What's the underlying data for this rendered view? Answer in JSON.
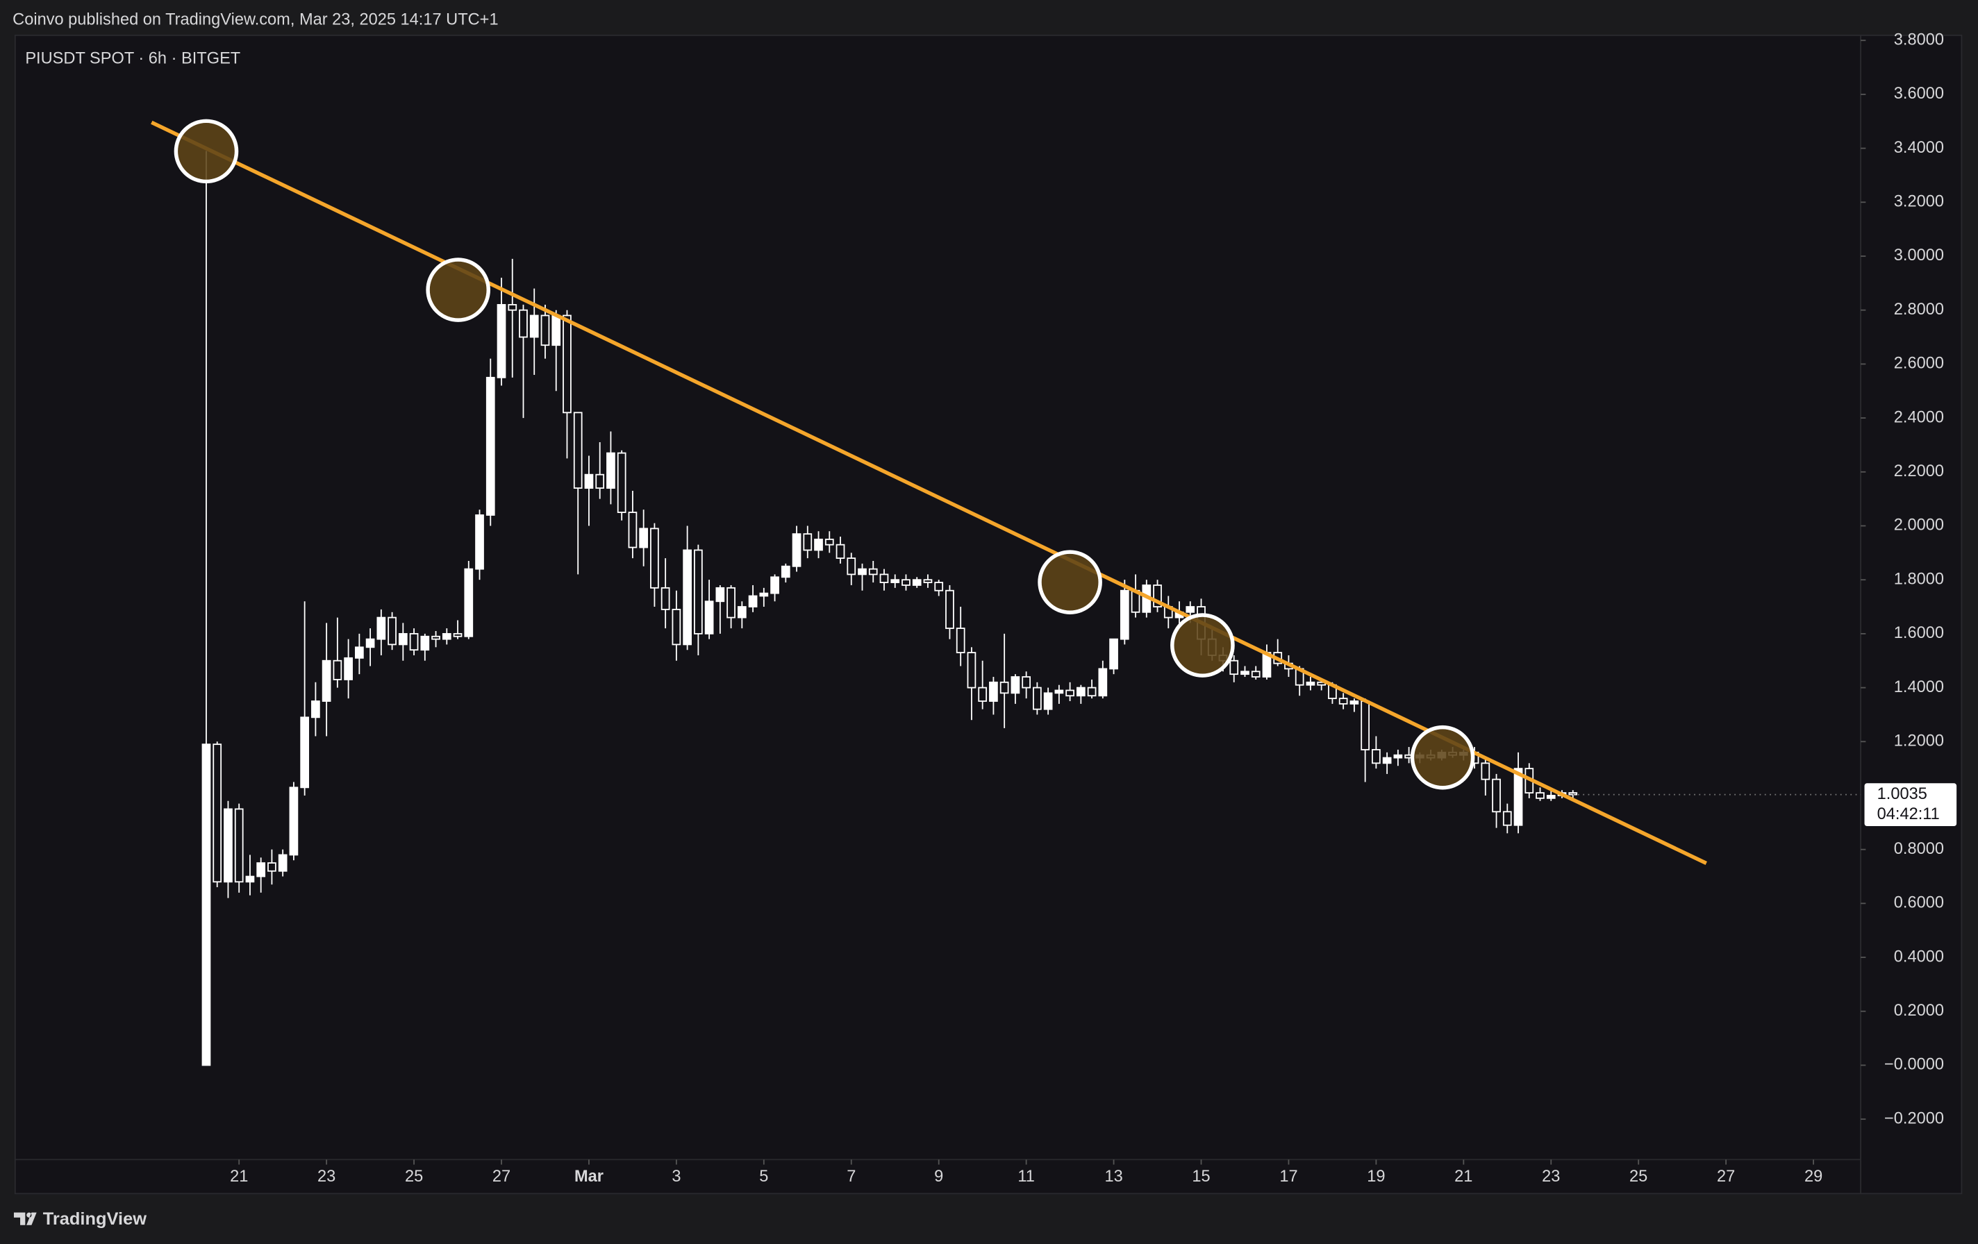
{
  "header": {
    "publisher": "Coinvo published on TradingView.com, Mar 23, 2025 14:17 UTC+1"
  },
  "footer": {
    "brand": "TradingView"
  },
  "chart_data": {
    "type": "candlestick",
    "title": "PIUSDT SPOT · 6h · BITGET",
    "up_color": "#ffffff",
    "down_color": "#ffffff",
    "x": [
      20.25,
      20.5,
      20.75,
      21,
      21.25,
      21.5,
      21.75,
      22,
      22.25,
      22.5,
      22.75,
      23,
      23.25,
      23.5,
      23.75,
      24,
      24.25,
      24.5,
      24.75,
      25,
      25.25,
      25.5,
      25.75,
      26,
      26.25,
      26.5,
      26.75,
      27,
      27.25,
      27.5,
      27.75,
      28,
      28.25,
      28.5,
      28.75,
      29,
      29.25,
      29.5,
      29.75,
      30,
      30.25,
      30.5,
      30.75,
      31,
      31.25,
      31.5,
      31.75,
      32,
      32.25,
      32.5,
      32.75,
      33,
      33.25,
      33.5,
      33.75,
      34,
      34.25,
      34.5,
      34.75,
      35,
      35.25,
      35.5,
      35.75,
      36,
      36.25,
      36.5,
      36.75,
      37,
      37.25,
      37.5,
      37.75,
      38,
      38.25,
      38.5,
      38.75,
      39,
      39.25,
      39.5,
      39.75,
      40,
      40.25,
      40.5,
      40.75,
      41,
      41.25,
      41.5,
      41.75,
      42,
      42.25,
      42.5,
      42.75,
      43,
      43.25,
      43.5,
      43.75,
      44,
      44.25,
      44.5,
      44.75,
      45,
      45.25,
      45.5,
      45.75,
      46,
      46.25,
      46.5,
      46.75,
      47,
      47.25,
      47.5,
      47.75,
      48,
      48.25,
      48.5,
      48.75,
      49,
      49.25,
      49.5,
      49.75,
      50,
      50.25,
      50.5,
      50.75,
      51,
      51.25,
      51.5
    ],
    "ohlc": [
      [
        0,
        3.39,
        0,
        1.19
      ],
      [
        1.19,
        1.2,
        0.66,
        0.68
      ],
      [
        0.68,
        0.98,
        0.62,
        0.95
      ],
      [
        0.95,
        0.97,
        0.64,
        0.68
      ],
      [
        0.68,
        0.78,
        0.63,
        0.7
      ],
      [
        0.7,
        0.77,
        0.64,
        0.75
      ],
      [
        0.75,
        0.8,
        0.67,
        0.72
      ],
      [
        0.72,
        0.8,
        0.7,
        0.78
      ],
      [
        0.78,
        1.05,
        0.76,
        1.03
      ],
      [
        1.03,
        1.72,
        1.0,
        1.29
      ],
      [
        1.29,
        1.42,
        1.22,
        1.35
      ],
      [
        1.35,
        1.64,
        1.22,
        1.5
      ],
      [
        1.5,
        1.66,
        1.4,
        1.43
      ],
      [
        1.43,
        1.58,
        1.36,
        1.51
      ],
      [
        1.51,
        1.6,
        1.45,
        1.55
      ],
      [
        1.55,
        1.62,
        1.48,
        1.58
      ],
      [
        1.58,
        1.69,
        1.52,
        1.66
      ],
      [
        1.66,
        1.68,
        1.54,
        1.56
      ],
      [
        1.56,
        1.64,
        1.5,
        1.6
      ],
      [
        1.6,
        1.62,
        1.52,
        1.54
      ],
      [
        1.54,
        1.6,
        1.5,
        1.59
      ],
      [
        1.59,
        1.61,
        1.55,
        1.58
      ],
      [
        1.58,
        1.62,
        1.56,
        1.6
      ],
      [
        1.6,
        1.65,
        1.58,
        1.59
      ],
      [
        1.59,
        1.87,
        1.58,
        1.84
      ],
      [
        1.84,
        2.06,
        1.8,
        2.04
      ],
      [
        2.04,
        2.62,
        2.0,
        2.55
      ],
      [
        2.55,
        2.92,
        2.52,
        2.82
      ],
      [
        2.82,
        2.99,
        2.55,
        2.8
      ],
      [
        2.8,
        2.82,
        2.4,
        2.7
      ],
      [
        2.7,
        2.88,
        2.56,
        2.78
      ],
      [
        2.78,
        2.82,
        2.62,
        2.67
      ],
      [
        2.67,
        2.8,
        2.5,
        2.78
      ],
      [
        2.78,
        2.8,
        2.25,
        2.42
      ],
      [
        2.42,
        2.42,
        1.82,
        2.14
      ],
      [
        2.14,
        2.26,
        2.0,
        2.19
      ],
      [
        2.19,
        2.31,
        2.1,
        2.14
      ],
      [
        2.14,
        2.35,
        2.08,
        2.27
      ],
      [
        2.27,
        2.28,
        2.02,
        2.05
      ],
      [
        2.05,
        2.13,
        1.88,
        1.92
      ],
      [
        1.92,
        2.06,
        1.85,
        1.99
      ],
      [
        1.99,
        2.01,
        1.7,
        1.77
      ],
      [
        1.77,
        1.88,
        1.62,
        1.69
      ],
      [
        1.69,
        1.76,
        1.5,
        1.56
      ],
      [
        1.56,
        2.0,
        1.54,
        1.91
      ],
      [
        1.91,
        1.93,
        1.52,
        1.6
      ],
      [
        1.6,
        1.8,
        1.58,
        1.72
      ],
      [
        1.72,
        1.78,
        1.6,
        1.77
      ],
      [
        1.77,
        1.78,
        1.62,
        1.66
      ],
      [
        1.66,
        1.72,
        1.62,
        1.7
      ],
      [
        1.7,
        1.78,
        1.68,
        1.74
      ],
      [
        1.74,
        1.77,
        1.7,
        1.75
      ],
      [
        1.75,
        1.82,
        1.72,
        1.81
      ],
      [
        1.81,
        1.86,
        1.79,
        1.85
      ],
      [
        1.85,
        2.0,
        1.83,
        1.97
      ],
      [
        1.97,
        2.0,
        1.88,
        1.91
      ],
      [
        1.91,
        1.98,
        1.88,
        1.95
      ],
      [
        1.95,
        1.98,
        1.9,
        1.93
      ],
      [
        1.93,
        1.96,
        1.86,
        1.88
      ],
      [
        1.88,
        1.9,
        1.78,
        1.82
      ],
      [
        1.82,
        1.86,
        1.76,
        1.84
      ],
      [
        1.84,
        1.87,
        1.79,
        1.82
      ],
      [
        1.82,
        1.84,
        1.76,
        1.79
      ],
      [
        1.79,
        1.82,
        1.77,
        1.8
      ],
      [
        1.8,
        1.82,
        1.76,
        1.78
      ],
      [
        1.78,
        1.81,
        1.77,
        1.8
      ],
      [
        1.8,
        1.82,
        1.77,
        1.79
      ],
      [
        1.79,
        1.8,
        1.74,
        1.76
      ],
      [
        1.76,
        1.78,
        1.58,
        1.62
      ],
      [
        1.62,
        1.7,
        1.48,
        1.53
      ],
      [
        1.53,
        1.55,
        1.28,
        1.4
      ],
      [
        1.4,
        1.5,
        1.32,
        1.35
      ],
      [
        1.35,
        1.44,
        1.3,
        1.42
      ],
      [
        1.42,
        1.6,
        1.25,
        1.38
      ],
      [
        1.38,
        1.45,
        1.34,
        1.44
      ],
      [
        1.44,
        1.46,
        1.36,
        1.4
      ],
      [
        1.4,
        1.42,
        1.3,
        1.32
      ],
      [
        1.32,
        1.4,
        1.3,
        1.38
      ],
      [
        1.38,
        1.41,
        1.34,
        1.39
      ],
      [
        1.39,
        1.42,
        1.35,
        1.37
      ],
      [
        1.37,
        1.41,
        1.34,
        1.4
      ],
      [
        1.4,
        1.43,
        1.36,
        1.37
      ],
      [
        1.37,
        1.5,
        1.36,
        1.47
      ],
      [
        1.47,
        1.58,
        1.45,
        1.58
      ],
      [
        1.58,
        1.8,
        1.56,
        1.76
      ],
      [
        1.76,
        1.82,
        1.66,
        1.68
      ],
      [
        1.68,
        1.8,
        1.66,
        1.78
      ],
      [
        1.78,
        1.8,
        1.68,
        1.7
      ],
      [
        1.7,
        1.74,
        1.62,
        1.66
      ],
      [
        1.66,
        1.72,
        1.62,
        1.68
      ],
      [
        1.68,
        1.72,
        1.64,
        1.7
      ],
      [
        1.7,
        1.73,
        1.52,
        1.58
      ],
      [
        1.58,
        1.62,
        1.5,
        1.52
      ],
      [
        1.52,
        1.55,
        1.46,
        1.5
      ],
      [
        1.5,
        1.52,
        1.42,
        1.45
      ],
      [
        1.45,
        1.48,
        1.44,
        1.46
      ],
      [
        1.46,
        1.48,
        1.43,
        1.44
      ],
      [
        1.44,
        1.56,
        1.43,
        1.53
      ],
      [
        1.53,
        1.58,
        1.48,
        1.49
      ],
      [
        1.49,
        1.52,
        1.44,
        1.47
      ],
      [
        1.47,
        1.48,
        1.37,
        1.41
      ],
      [
        1.41,
        1.44,
        1.39,
        1.42
      ],
      [
        1.42,
        1.43,
        1.39,
        1.41
      ],
      [
        1.41,
        1.42,
        1.34,
        1.36
      ],
      [
        1.36,
        1.38,
        1.32,
        1.34
      ],
      [
        1.34,
        1.36,
        1.31,
        1.35
      ],
      [
        1.35,
        1.36,
        1.05,
        1.17
      ],
      [
        1.17,
        1.22,
        1.1,
        1.12
      ],
      [
        1.12,
        1.16,
        1.08,
        1.14
      ],
      [
        1.14,
        1.17,
        1.11,
        1.15
      ],
      [
        1.15,
        1.18,
        1.12,
        1.14
      ],
      [
        1.14,
        1.16,
        1.12,
        1.15
      ],
      [
        1.15,
        1.17,
        1.13,
        1.14
      ],
      [
        1.14,
        1.17,
        1.13,
        1.16
      ],
      [
        1.16,
        1.18,
        1.14,
        1.15
      ],
      [
        1.15,
        1.17,
        1.13,
        1.16
      ],
      [
        1.16,
        1.18,
        1.1,
        1.12
      ],
      [
        1.12,
        1.14,
        1.0,
        1.06
      ],
      [
        1.06,
        1.08,
        0.88,
        0.94
      ],
      [
        0.94,
        0.97,
        0.86,
        0.89
      ],
      [
        0.89,
        1.16,
        0.86,
        1.1
      ],
      [
        1.1,
        1.12,
        0.99,
        1.01
      ],
      [
        1.01,
        1.03,
        0.98,
        0.99
      ],
      [
        0.99,
        1.02,
        0.98,
        1.0
      ],
      [
        1.0,
        1.02,
        0.99,
        1.01
      ],
      [
        1.01,
        1.02,
        0.99,
        1.0035
      ]
    ],
    "countdown": "04:42:11",
    "trendline": {
      "x": [
        19.0,
        54.55
      ],
      "y": [
        3.496,
        0.749
      ],
      "color": "#f5a62b"
    },
    "highlights": {
      "x": [
        20.25,
        26.01,
        40.0,
        43.03,
        48.52
      ],
      "y": [
        3.389,
        2.875,
        1.791,
        1.557,
        1.141
      ],
      "color": "#5e4418"
    },
    "xlim": [
      15.88,
      58.08
    ],
    "xticks": [
      21,
      23,
      25,
      27,
      {
        "value": 29,
        "label": "Mar"
      },
      {
        "value": 31,
        "label": "3"
      },
      {
        "value": 33,
        "label": "5"
      },
      {
        "value": 35,
        "label": "7"
      },
      {
        "value": 37,
        "label": "9"
      },
      {
        "value": 39,
        "label": "11"
      },
      {
        "value": 41,
        "label": "13"
      },
      {
        "value": 43,
        "label": "15"
      },
      {
        "value": 45,
        "label": "17"
      },
      {
        "value": 47,
        "label": "19"
      },
      {
        "value": 49,
        "label": "21"
      },
      {
        "value": 51,
        "label": "23"
      },
      {
        "value": 53,
        "label": "25"
      },
      {
        "value": 55,
        "label": "27"
      },
      {
        "value": 57,
        "label": "29"
      }
    ],
    "ylim": [
      -0.476,
      3.819
    ],
    "yticks": [
      {
        "value": 3.8,
        "label": "3.8000"
      },
      {
        "value": 3.6,
        "label": "3.6000"
      },
      {
        "value": 3.4,
        "label": "3.4000"
      },
      {
        "value": 3.2,
        "label": "3.2000"
      },
      {
        "value": 3.0,
        "label": "3.0000"
      },
      {
        "value": 2.8,
        "label": "2.8000"
      },
      {
        "value": 2.6,
        "label": "2.6000"
      },
      {
        "value": 2.4,
        "label": "2.4000"
      },
      {
        "value": 2.2,
        "label": "2.2000"
      },
      {
        "value": 2.0,
        "label": "2.0000"
      },
      {
        "value": 1.8,
        "label": "1.8000"
      },
      {
        "value": 1.6,
        "label": "1.6000"
      },
      {
        "value": 1.4,
        "label": "1.4000"
      },
      {
        "value": 1.2,
        "label": "1.2000"
      },
      {
        "value": 0.8,
        "label": "0.8000"
      },
      {
        "value": 0.6,
        "label": "0.6000"
      },
      {
        "value": 0.4,
        "label": "0.4000"
      },
      {
        "value": 0.2,
        "label": "0.2000"
      },
      {
        "value": 0,
        "label": "−0.0000"
      },
      {
        "value": -0.2,
        "label": "−0.2000"
      }
    ],
    "grid": false
  }
}
